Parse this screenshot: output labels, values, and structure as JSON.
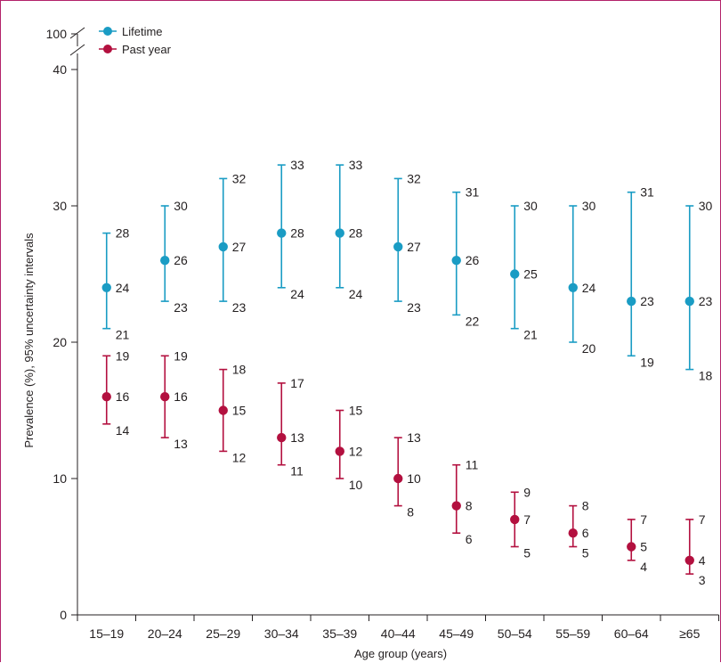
{
  "chart_data": {
    "type": "scatter",
    "categories": [
      "15–19",
      "20–24",
      "25–29",
      "30–34",
      "35–39",
      "40–44",
      "45–49",
      "50–54",
      "55–59",
      "60–64",
      "≥65"
    ],
    "xlabel": "Age group (years)",
    "ylabel": "Prevalence (%), 95% uncertainty intervals",
    "ylim": [
      0,
      40
    ],
    "yticks": [
      0,
      10,
      20,
      30,
      40
    ],
    "ybreak_label": "100",
    "grid": false,
    "legend_position": "top-left",
    "series": [
      {
        "name": "Lifetime",
        "color": "#1a9cc4",
        "values": [
          24,
          26,
          27,
          28,
          28,
          27,
          26,
          25,
          24,
          23,
          23
        ],
        "lower": [
          21,
          23,
          23,
          24,
          24,
          23,
          22,
          21,
          20,
          19,
          18
        ],
        "upper": [
          28,
          30,
          32,
          33,
          33,
          32,
          31,
          30,
          30,
          31,
          30
        ]
      },
      {
        "name": "Past year",
        "color": "#b3103f",
        "values": [
          16,
          16,
          15,
          13,
          12,
          10,
          8,
          7,
          6,
          5,
          4
        ],
        "lower": [
          14,
          13,
          12,
          11,
          10,
          8,
          6,
          5,
          5,
          4,
          3
        ],
        "upper": [
          19,
          19,
          18,
          17,
          15,
          13,
          11,
          9,
          8,
          7,
          7
        ]
      }
    ]
  }
}
